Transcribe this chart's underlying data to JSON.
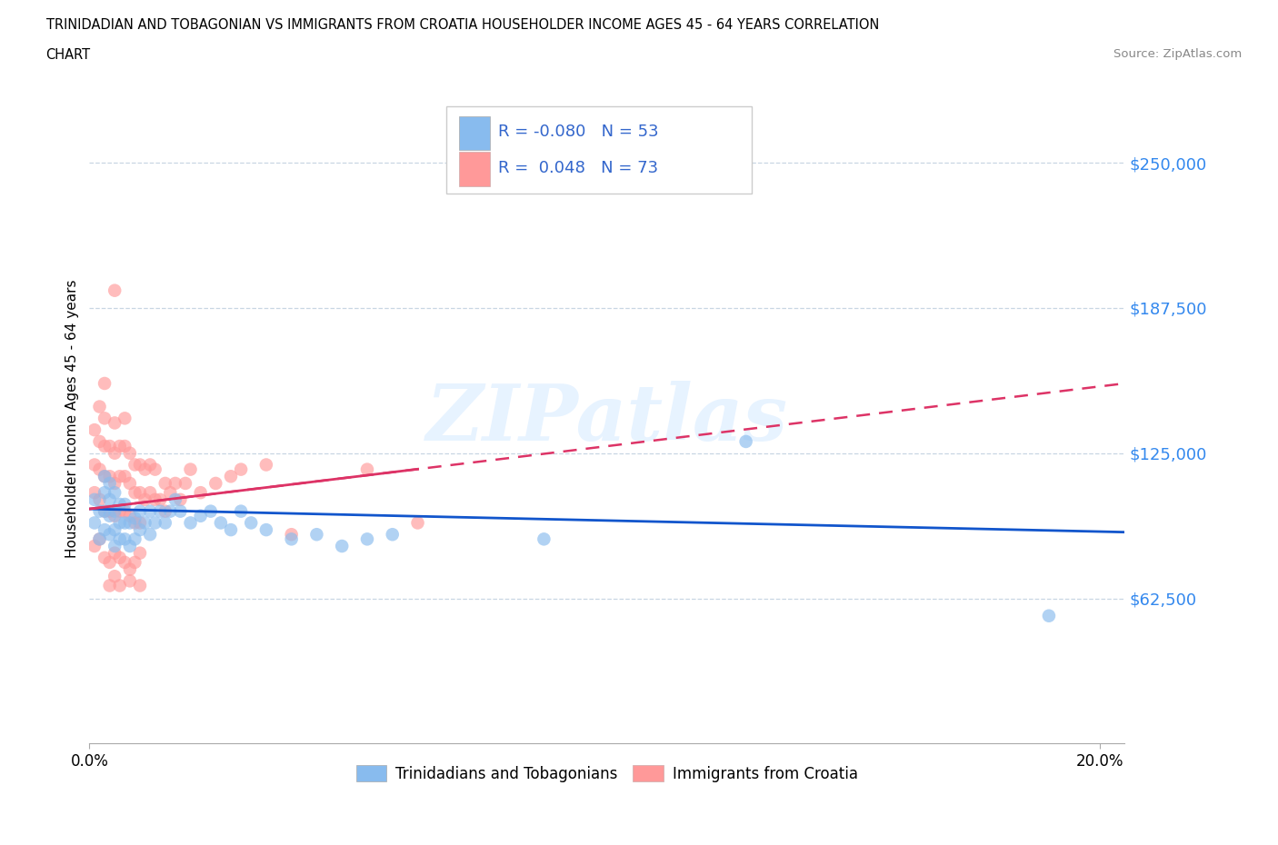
{
  "title_line1": "TRINIDADIAN AND TOBAGONIAN VS IMMIGRANTS FROM CROATIA HOUSEHOLDER INCOME AGES 45 - 64 YEARS CORRELATION",
  "title_line2": "CHART",
  "source": "Source: ZipAtlas.com",
  "ylabel_label": "Householder Income Ages 45 - 64 years",
  "xmin": 0.0,
  "xmax": 0.205,
  "ymin": 0,
  "ymax": 280000,
  "yticks": [
    62500,
    125000,
    187500,
    250000
  ],
  "ytick_labels": [
    "$62,500",
    "$125,000",
    "$187,500",
    "$250,000"
  ],
  "xticks": [
    0.0,
    0.2
  ],
  "xtick_labels": [
    "0.0%",
    "20.0%"
  ],
  "blue_R": -0.08,
  "blue_N": 53,
  "pink_R": 0.048,
  "pink_N": 73,
  "blue_color": "#88BBEE",
  "pink_color": "#FF9999",
  "blue_line_color": "#1155CC",
  "pink_line_color": "#DD3366",
  "watermark": "ZIPatlas",
  "legend_label_blue": "Trinidadians and Tobagonians",
  "legend_label_pink": "Immigrants from Croatia",
  "blue_scatter_x": [
    0.001,
    0.001,
    0.002,
    0.002,
    0.003,
    0.003,
    0.003,
    0.003,
    0.004,
    0.004,
    0.004,
    0.004,
    0.005,
    0.005,
    0.005,
    0.005,
    0.006,
    0.006,
    0.006,
    0.007,
    0.007,
    0.007,
    0.008,
    0.008,
    0.009,
    0.009,
    0.01,
    0.01,
    0.011,
    0.012,
    0.012,
    0.013,
    0.014,
    0.015,
    0.016,
    0.017,
    0.018,
    0.02,
    0.022,
    0.024,
    0.026,
    0.028,
    0.03,
    0.032,
    0.035,
    0.04,
    0.045,
    0.05,
    0.055,
    0.06,
    0.09,
    0.13,
    0.19
  ],
  "blue_scatter_y": [
    95000,
    105000,
    88000,
    100000,
    92000,
    100000,
    108000,
    115000,
    90000,
    98000,
    105000,
    112000,
    85000,
    92000,
    100000,
    108000,
    88000,
    95000,
    103000,
    88000,
    95000,
    103000,
    85000,
    95000,
    88000,
    97000,
    92000,
    100000,
    95000,
    90000,
    100000,
    95000,
    100000,
    95000,
    100000,
    105000,
    100000,
    95000,
    98000,
    100000,
    95000,
    92000,
    100000,
    95000,
    92000,
    88000,
    90000,
    85000,
    88000,
    90000,
    88000,
    130000,
    55000
  ],
  "pink_scatter_x": [
    0.001,
    0.001,
    0.001,
    0.002,
    0.002,
    0.002,
    0.002,
    0.003,
    0.003,
    0.003,
    0.003,
    0.003,
    0.004,
    0.004,
    0.004,
    0.005,
    0.005,
    0.005,
    0.005,
    0.005,
    0.006,
    0.006,
    0.006,
    0.007,
    0.007,
    0.007,
    0.007,
    0.008,
    0.008,
    0.008,
    0.009,
    0.009,
    0.009,
    0.01,
    0.01,
    0.01,
    0.011,
    0.011,
    0.012,
    0.012,
    0.013,
    0.013,
    0.014,
    0.015,
    0.015,
    0.016,
    0.017,
    0.018,
    0.019,
    0.02,
    0.022,
    0.025,
    0.028,
    0.03,
    0.035,
    0.04,
    0.055,
    0.065,
    0.001,
    0.002,
    0.003,
    0.004,
    0.005,
    0.006,
    0.007,
    0.008,
    0.009,
    0.01,
    0.004,
    0.005,
    0.006,
    0.008,
    0.01
  ],
  "pink_scatter_y": [
    108000,
    120000,
    135000,
    105000,
    118000,
    130000,
    145000,
    100000,
    115000,
    128000,
    140000,
    155000,
    100000,
    115000,
    128000,
    98000,
    112000,
    125000,
    138000,
    195000,
    100000,
    115000,
    128000,
    100000,
    115000,
    128000,
    140000,
    98000,
    112000,
    125000,
    95000,
    108000,
    120000,
    95000,
    108000,
    120000,
    105000,
    118000,
    108000,
    120000,
    105000,
    118000,
    105000,
    100000,
    112000,
    108000,
    112000,
    105000,
    112000,
    118000,
    108000,
    112000,
    115000,
    118000,
    120000,
    90000,
    118000,
    95000,
    85000,
    88000,
    80000,
    78000,
    82000,
    80000,
    78000,
    75000,
    78000,
    82000,
    68000,
    72000,
    68000,
    70000,
    68000
  ]
}
